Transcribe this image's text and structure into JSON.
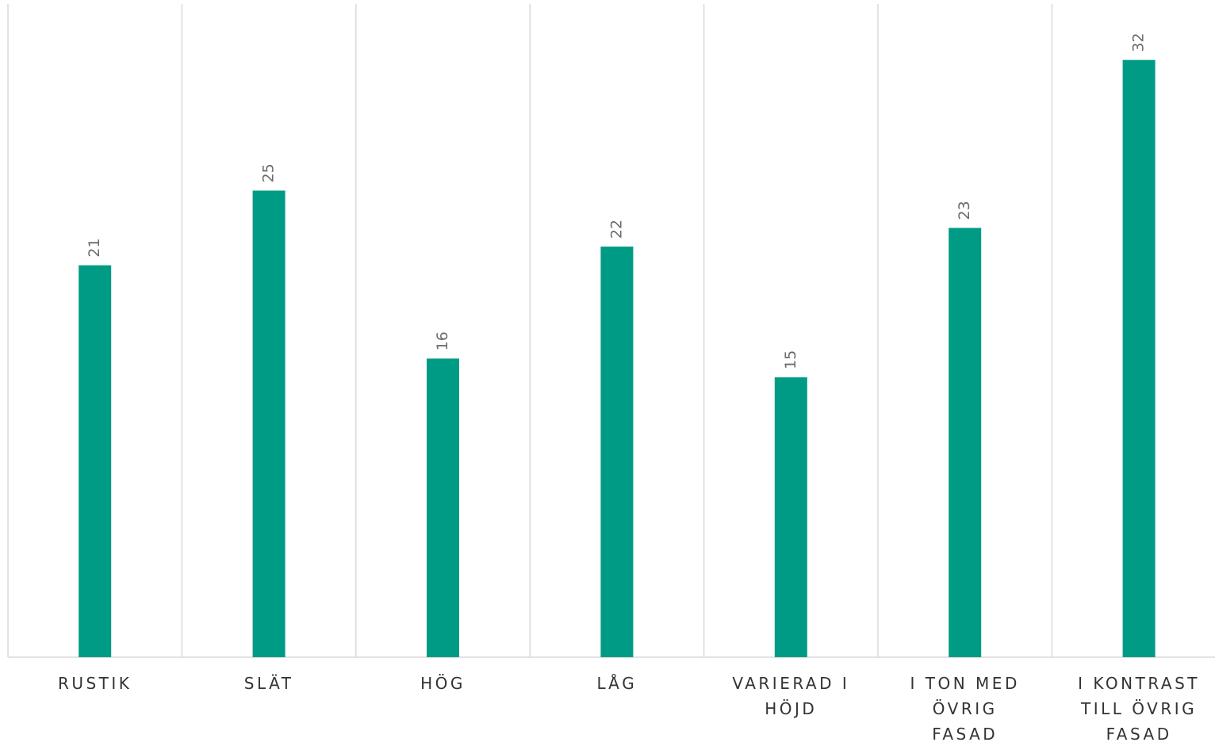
{
  "chart_data": {
    "type": "bar",
    "categories": [
      "RUSTIK",
      "SLÄT",
      "HÖG",
      "LÅG",
      "VARIERAD I HÖJD",
      "I TON MED ÖVRIG FASAD",
      "I KONTRAST TILL ÖVRIG FASAD"
    ],
    "values": [
      21,
      25,
      16,
      22,
      15,
      23,
      32
    ],
    "color": "#009b84",
    "ylim": [
      0,
      35
    ],
    "grid": true
  }
}
